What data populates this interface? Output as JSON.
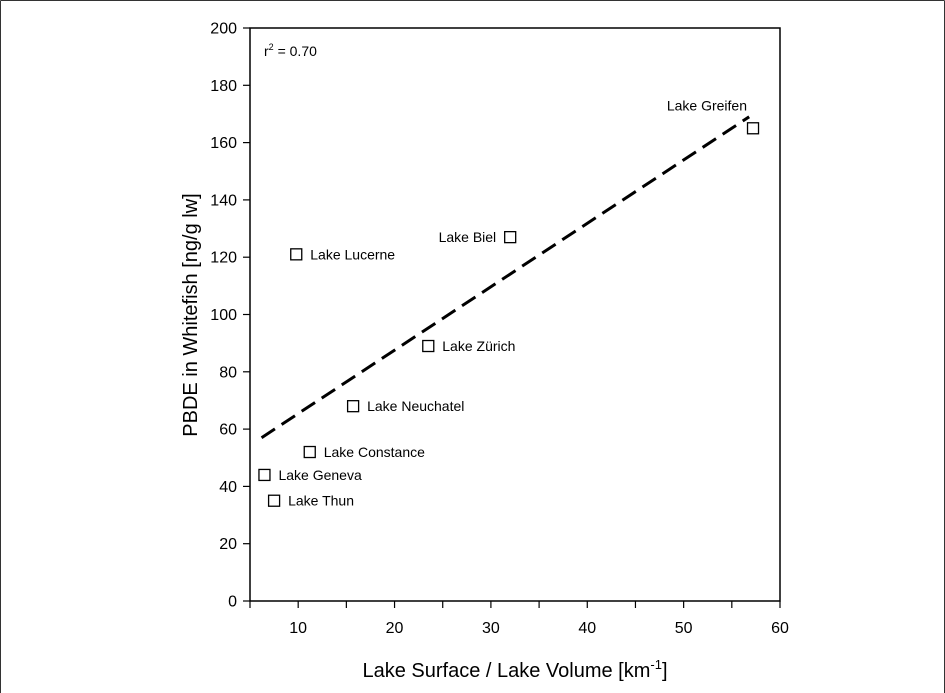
{
  "chart_data": {
    "type": "scatter",
    "xlabel": "Lake Surface / Lake Volume [km",
    "xlabel_superscript": "-1",
    "xlabel_suffix": "]",
    "ylabel": "PBDE in Whitefish [ng/g lw]",
    "xlim": [
      5,
      60
    ],
    "ylim": [
      0,
      200
    ],
    "x_ticks": [
      10,
      20,
      30,
      40,
      50,
      60
    ],
    "x_minor_ticks": [
      5,
      15,
      25,
      35,
      45,
      55
    ],
    "y_ticks": [
      0,
      20,
      40,
      60,
      80,
      100,
      120,
      140,
      160,
      180,
      200
    ],
    "annotation": {
      "prefix": "r",
      "superscript": "2",
      "suffix": " = 0.70"
    },
    "points": [
      {
        "name": "Lake Greifen",
        "x": 57.2,
        "y": 165,
        "label_pos": "above-left"
      },
      {
        "name": "Lake Biel",
        "x": 32.0,
        "y": 127,
        "label_pos": "left"
      },
      {
        "name": "Lake Lucerne",
        "x": 9.8,
        "y": 121,
        "label_pos": "right"
      },
      {
        "name": "Lake Zürich",
        "x": 23.5,
        "y": 89,
        "label_pos": "right"
      },
      {
        "name": "Lake Neuchatel",
        "x": 15.7,
        "y": 68,
        "label_pos": "right"
      },
      {
        "name": "Lake Constance",
        "x": 11.2,
        "y": 52,
        "label_pos": "right"
      },
      {
        "name": "Lake Geneva",
        "x": 6.5,
        "y": 44,
        "label_pos": "right"
      },
      {
        "name": "Lake Thun",
        "x": 7.5,
        "y": 35,
        "label_pos": "right"
      }
    ],
    "trendline": {
      "style": "dashed",
      "x": [
        6.2,
        56.8
      ],
      "y": [
        57,
        169
      ]
    }
  }
}
